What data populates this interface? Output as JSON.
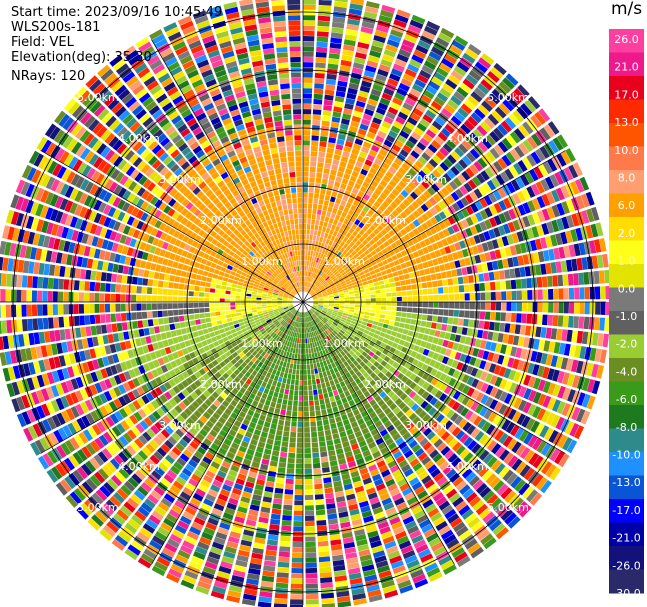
{
  "header": {
    "start_time": "Start time: 2023/09/16 10:45:49",
    "instrument": "WLS200s-181",
    "field": "Field: VEL",
    "elevation": "Elevation(deg): 35.30",
    "nrays": "NRays: 120"
  },
  "colorbar": {
    "unit": "m/s",
    "ticks": [
      "26.0",
      "21.0",
      "17.0",
      "13.0",
      "10.0",
      "8.0",
      "6.0",
      "2.0",
      "1.0",
      "0.0",
      "-1.0",
      "-2.0",
      "-4.0",
      "-6.0",
      "-8.0",
      "-10.0",
      "-13.0",
      "-17.0",
      "-21.0",
      "-26.0",
      "-30.0"
    ],
    "colors": [
      "#ff3fa0",
      "#ee1a8c",
      "#e8001c",
      "#ff2a00",
      "#ff5500",
      "#ff7a4a",
      "#ff9e70",
      "#ffa000",
      "#ffdd00",
      "#ffff1a",
      "#e3e300",
      "#7a7a7a",
      "#606060",
      "#9acd32",
      "#6b8e23",
      "#3a9b1a",
      "#1f7a1f",
      "#2e8b8b",
      "#1e90ff",
      "#0a55d6",
      "#0000ff",
      "#0000a8",
      "#12127a",
      "#2a2a6a"
    ]
  },
  "chart_data": {
    "type": "heatmap",
    "subtype": "PPI radar display (polar)",
    "field": "VEL",
    "units": "m/s",
    "n_rays": 120,
    "elevation_deg": 35.3,
    "range_rings_km": [
      1.0,
      2.0,
      3.0,
      4.0,
      5.0
    ],
    "ring_labels": [
      "1.00km",
      "2.00km",
      "3.00km",
      "4.00km",
      "5.00km"
    ],
    "color_scale_ticks": [
      26.0,
      21.0,
      17.0,
      13.0,
      10.0,
      8.0,
      6.0,
      2.0,
      1.0,
      0.0,
      -1.0,
      -2.0,
      -4.0,
      -6.0,
      -8.0,
      -10.0,
      -13.0,
      -17.0,
      -21.0,
      -26.0,
      -30.0
    ],
    "pattern": "Near-field (<2.5 km) coherent: positive velocities (yellow/orange, ~+2 to +6 m/s) in the northern half, negative velocities (green, ~-2 to -6 m/s) in the southern half, near-zero (grey) along east-west axis; beyond ~3 km range noise in all colors."
  }
}
